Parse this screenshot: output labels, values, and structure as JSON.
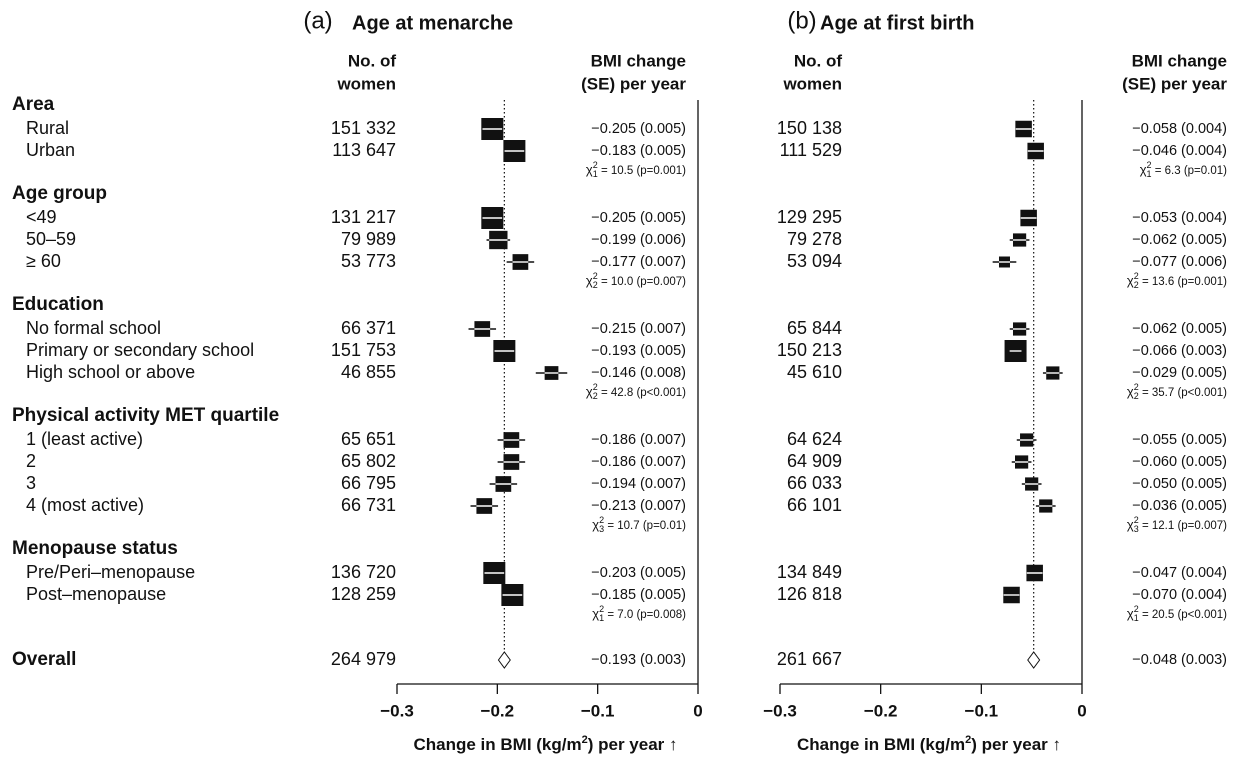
{
  "groups": [
    {
      "name": "Area",
      "rows": [
        "Rural",
        "Urban"
      ]
    },
    {
      "name": "Age group",
      "rows": [
        "<49",
        "50–59",
        "≥ 60"
      ]
    },
    {
      "name": "Education",
      "rows": [
        "No formal school",
        "Primary or secondary school",
        "High school or above"
      ]
    },
    {
      "name": "Physical activity MET quartile",
      "rows": [
        "1 (least active)",
        "2",
        "3",
        "4 (most active)"
      ]
    },
    {
      "name": "Menopause status",
      "rows": [
        "Pre/Peri–menopause",
        "Post–menopause"
      ]
    }
  ],
  "overall_label": "Overall",
  "test_symbol": "χ",
  "test_power": "2",
  "chart_data": [
    {
      "type": "forest",
      "panel": "(a)",
      "title": "Age at menarche",
      "n_header": [
        "No. of",
        "women"
      ],
      "estimate_header": [
        "BMI change",
        "(SE) per year"
      ],
      "xlabel": "Change in BMI (kg/m",
      "xlabel_sup": "2",
      "xlabel_end": ") per year ↑",
      "xlim": [
        -0.3,
        0
      ],
      "xticks": [
        {
          "value": -0.3,
          "label": "−0.3"
        },
        {
          "value": -0.2,
          "label": "−0.2"
        },
        {
          "value": -0.1,
          "label": "−0.1"
        },
        0
      ],
      "color": "#111111",
      "series": [
        {
          "n": [
            "151 332",
            "113 647"
          ],
          "values": [
            -0.205,
            -0.183
          ],
          "errors": [
            0.005,
            0.005
          ],
          "value_labels": [
            "−0.205 (0.005)",
            "−0.183 (0.005)"
          ],
          "test_df": "1",
          "test_text": " = 10.5  (p=0.001)"
        },
        {
          "n": [
            "131 217",
            "79 989",
            "53 773"
          ],
          "values": [
            -0.205,
            -0.199,
            -0.177
          ],
          "errors": [
            0.005,
            0.006,
            0.007
          ],
          "value_labels": [
            "−0.205 (0.005)",
            "−0.199 (0.006)",
            "−0.177 (0.007)"
          ],
          "test_df": "2",
          "test_text": " = 10.0  (p=0.007)"
        },
        {
          "n": [
            "66 371",
            "151 753",
            "46 855"
          ],
          "values": [
            -0.215,
            -0.193,
            -0.146
          ],
          "errors": [
            0.007,
            0.005,
            0.008
          ],
          "value_labels": [
            "−0.215 (0.007)",
            "−0.193 (0.005)",
            "−0.146 (0.008)"
          ],
          "test_df": "2",
          "test_text": " = 42.8  (p<0.001)"
        },
        {
          "n": [
            "65 651",
            "65 802",
            "66 795",
            "66 731"
          ],
          "values": [
            -0.186,
            -0.186,
            -0.194,
            -0.213
          ],
          "errors": [
            0.007,
            0.007,
            0.007,
            0.007
          ],
          "value_labels": [
            "−0.186 (0.007)",
            "−0.186 (0.007)",
            "−0.194 (0.007)",
            "−0.213 (0.007)"
          ],
          "test_df": "3",
          "test_text": " = 10.7  (p=0.01)"
        },
        {
          "n": [
            "136 720",
            "128 259"
          ],
          "values": [
            -0.203,
            -0.185
          ],
          "errors": [
            0.005,
            0.005
          ],
          "value_labels": [
            "−0.203 (0.005)",
            "−0.185 (0.005)"
          ],
          "test_df": "1",
          "test_text": " = 7.0  (p=0.008)"
        }
      ],
      "overall": {
        "n": "264 979",
        "value": -0.193,
        "error": 0.003,
        "value_label": "−0.193 (0.003)"
      }
    },
    {
      "type": "forest",
      "panel": "(b)",
      "title": "Age at first birth",
      "n_header": [
        "No. of",
        "women"
      ],
      "estimate_header": [
        "BMI change",
        "(SE) per year"
      ],
      "xlabel": "Change in BMI (kg/m",
      "xlabel_sup": "2",
      "xlabel_end": ") per year ↑",
      "xlim": [
        -0.3,
        0
      ],
      "xticks": [
        {
          "value": -0.3,
          "label": "−0.3"
        },
        {
          "value": -0.2,
          "label": "−0.2"
        },
        {
          "value": -0.1,
          "label": "−0.1"
        },
        0
      ],
      "color": "#111111",
      "series": [
        {
          "n": [
            "150 138",
            "111 529"
          ],
          "values": [
            -0.058,
            -0.046
          ],
          "errors": [
            0.004,
            0.004
          ],
          "value_labels": [
            "−0.058 (0.004)",
            "−0.046 (0.004)"
          ],
          "test_df": "1",
          "test_text": " = 6.3  (p=0.01)"
        },
        {
          "n": [
            "129 295",
            "79 278",
            "53 094"
          ],
          "values": [
            -0.053,
            -0.062,
            -0.077
          ],
          "errors": [
            0.004,
            0.005,
            0.006
          ],
          "value_labels": [
            "−0.053 (0.004)",
            "−0.062 (0.005)",
            "−0.077 (0.006)"
          ],
          "test_df": "2",
          "test_text": " = 13.6  (p=0.001)"
        },
        {
          "n": [
            "65 844",
            "150 213",
            "45 610"
          ],
          "values": [
            -0.062,
            -0.066,
            -0.029
          ],
          "errors": [
            0.005,
            0.003,
            0.005
          ],
          "value_labels": [
            "−0.062 (0.005)",
            "−0.066 (0.003)",
            "−0.029 (0.005)"
          ],
          "test_df": "2",
          "test_text": " = 35.7  (p<0.001)"
        },
        {
          "n": [
            "64 624",
            "64 909",
            "66 033",
            "66 101"
          ],
          "values": [
            -0.055,
            -0.06,
            -0.05,
            -0.036
          ],
          "errors": [
            0.005,
            0.005,
            0.005,
            0.005
          ],
          "value_labels": [
            "−0.055 (0.005)",
            "−0.060 (0.005)",
            "−0.050 (0.005)",
            "−0.036 (0.005)"
          ],
          "test_df": "3",
          "test_text": " = 12.1  (p=0.007)"
        },
        {
          "n": [
            "134 849",
            "126 818"
          ],
          "values": [
            -0.047,
            -0.07
          ],
          "errors": [
            0.004,
            0.004
          ],
          "value_labels": [
            "−0.047 (0.004)",
            "−0.070 (0.004)"
          ],
          "test_df": "1",
          "test_text": " = 20.5  (p<0.001)"
        }
      ],
      "overall": {
        "n": "261 667",
        "value": -0.048,
        "error": 0.003,
        "value_label": "−0.048 (0.003)"
      }
    }
  ]
}
